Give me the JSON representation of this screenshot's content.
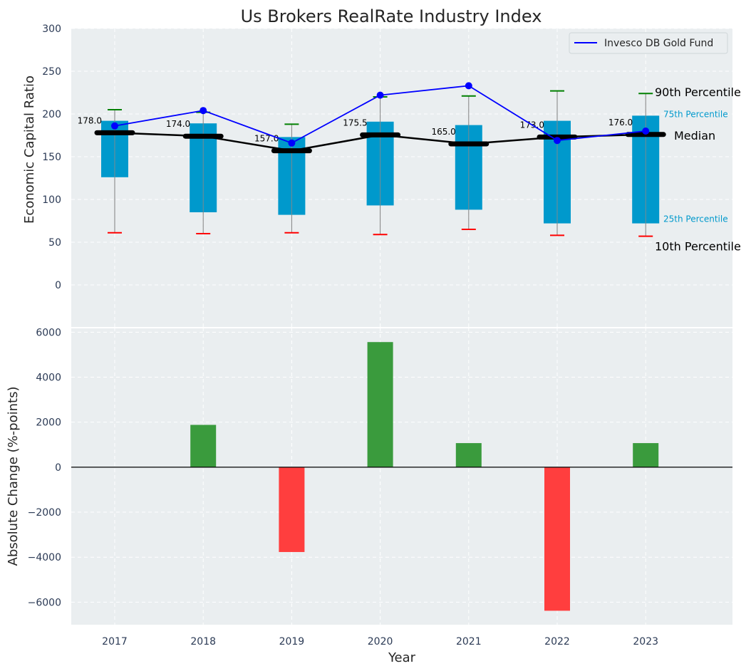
{
  "title": "Us Brokers RealRate Industry Index",
  "colors": {
    "background": "#eaeef0",
    "box": "#0099cc",
    "median_line": "#000000",
    "fund_line": "#0000ff",
    "whisker_top": "#008000",
    "whisker_bottom": "#ff0000",
    "positive_bar": "#3a9b3d",
    "negative_bar": "#ff3e3e",
    "grid": "#ffffff"
  },
  "legend": {
    "fund_label": "Invesco DB Gold Fund",
    "position": "upper right"
  },
  "annotations": {
    "p90": "90th Percentile",
    "p75": "75th Percentile",
    "median": "Median",
    "p25": "25th Percentile",
    "p10": "10th Percentile"
  },
  "chart_data": [
    {
      "type": "box-percentile",
      "ylabel": "Economic Capital Ratio",
      "ylim": [
        -50,
        300
      ],
      "yticks": [
        "0",
        "50",
        "100",
        "150",
        "200",
        "250",
        "300"
      ],
      "grid": true,
      "categories": [
        "2017",
        "2018",
        "2019",
        "2020",
        "2021",
        "2022",
        "2023"
      ],
      "p10": [
        61,
        60,
        61,
        59,
        65,
        58,
        57
      ],
      "p25": [
        126,
        85,
        82,
        93,
        88,
        72,
        72
      ],
      "median": [
        178.0,
        174.0,
        157.0,
        175.5,
        165.0,
        173.0,
        176.0
      ],
      "median_labels": [
        "178.0",
        "174.0",
        "157.0",
        "175.5",
        "165.0",
        "173.0",
        "176.0"
      ],
      "p75": [
        192,
        189,
        173,
        191,
        187,
        192,
        198
      ],
      "p90": [
        205,
        202,
        188,
        220,
        221,
        227,
        224
      ],
      "series": [
        {
          "name": "Invesco DB Gold Fund",
          "values": [
            186,
            204,
            166,
            222,
            233,
            169,
            180
          ]
        }
      ]
    },
    {
      "type": "bar",
      "xlabel": "Year",
      "ylabel": "Absolute Change (%-points)",
      "ylim": [
        -7000,
        6200
      ],
      "yticks": [
        "6000",
        "4000",
        "2000",
        "0",
        "−2000",
        "−4000",
        "−6000"
      ],
      "xticks": [
        "2017",
        "2018",
        "2019",
        "2020",
        "2021",
        "2022",
        "2023"
      ],
      "grid": true,
      "categories": [
        "2017",
        "2018",
        "2019",
        "2020",
        "2021",
        "2022",
        "2023"
      ],
      "values": [
        0,
        1880,
        -3770,
        5560,
        1070,
        -6380,
        1070
      ]
    }
  ]
}
